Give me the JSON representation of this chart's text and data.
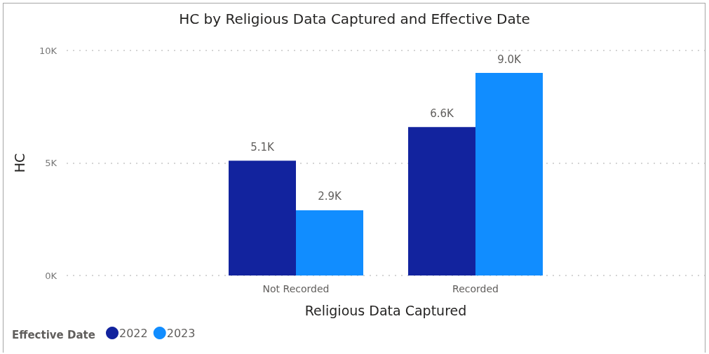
{
  "chart_data": {
    "type": "bar",
    "title": "HC by Religious Data Captured and Effective Date",
    "xlabel": "Religious Data Captured",
    "ylabel": "HC",
    "legend_title": "Effective Date",
    "categories": [
      "Not Recorded",
      "Recorded"
    ],
    "series": [
      {
        "name": "2022",
        "color": "#12239e",
        "values": [
          5100,
          6600
        ],
        "value_labels": [
          "5.1K",
          "6.6K"
        ]
      },
      {
        "name": "2023",
        "color": "#118dff",
        "values": [
          2900,
          9000
        ],
        "value_labels": [
          "2.9K",
          "9.0K"
        ]
      }
    ],
    "ylim": [
      0,
      10000
    ],
    "yticks": [
      {
        "value": 0,
        "label": "0K"
      },
      {
        "value": 5000,
        "label": "5K"
      },
      {
        "value": 10000,
        "label": "10K"
      }
    ],
    "grid": "y",
    "legend": "bottom left"
  }
}
